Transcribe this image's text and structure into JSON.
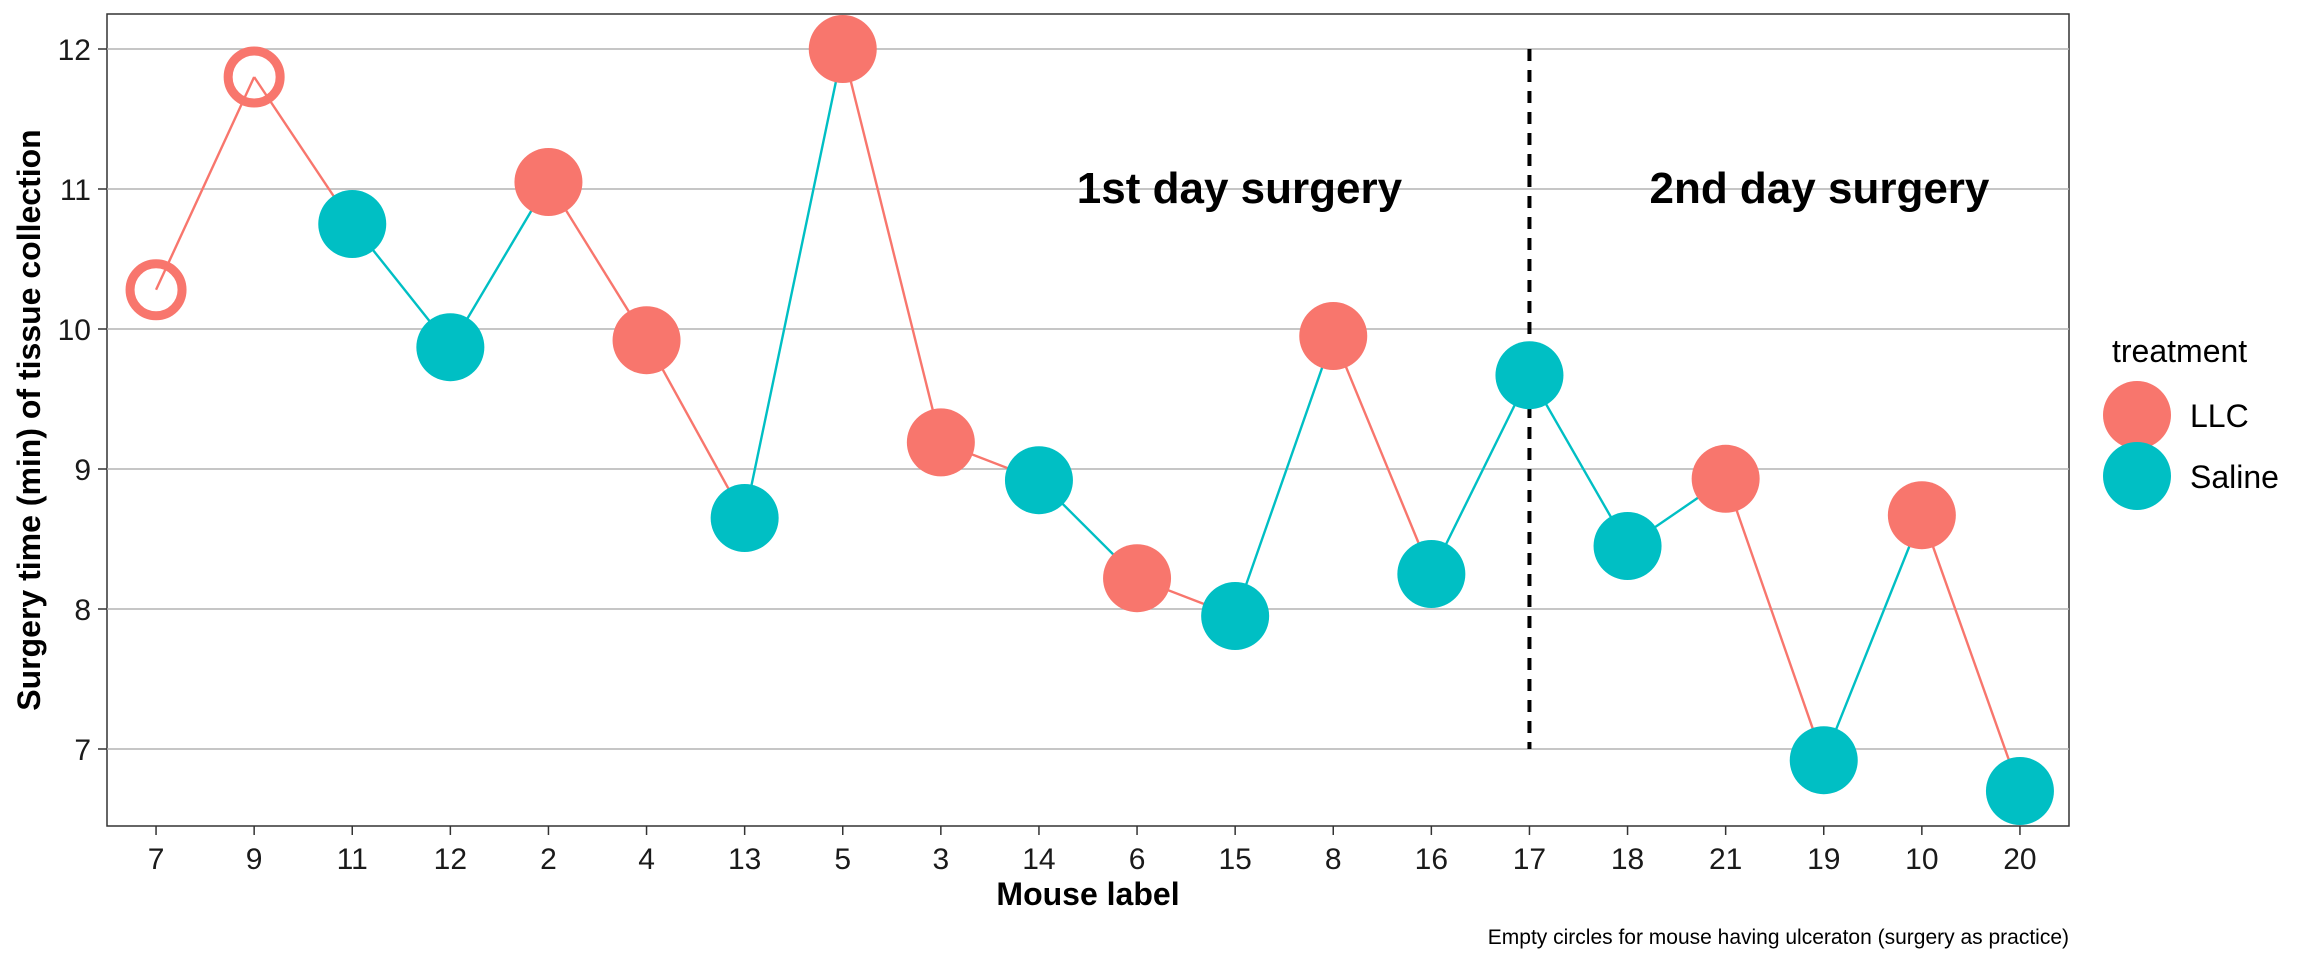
{
  "chart_data": {
    "type": "scatter",
    "title": "",
    "xlabel": "Mouse label",
    "ylabel": "Surgery time (min) of tissue collection",
    "categories": [
      "7",
      "9",
      "11",
      "12",
      "2",
      "4",
      "13",
      "5",
      "3",
      "14",
      "6",
      "15",
      "8",
      "16",
      "17",
      "18",
      "21",
      "19",
      "10",
      "20"
    ],
    "ylim": [
      6.45,
      12.25
    ],
    "yticks": [
      7,
      8,
      9,
      10,
      11,
      12
    ],
    "grid": true,
    "legend": {
      "title": "treatment",
      "placement": "right",
      "entries": [
        "LLC",
        "Saline"
      ]
    },
    "colors": {
      "LLC": "#F8766D",
      "Saline": "#00BFC4"
    },
    "points": [
      {
        "x": "7",
        "y": 10.28,
        "treatment": "LLC",
        "empty": true
      },
      {
        "x": "9",
        "y": 11.8,
        "treatment": "LLC",
        "empty": true
      },
      {
        "x": "11",
        "y": 10.75,
        "treatment": "Saline",
        "empty": false
      },
      {
        "x": "12",
        "y": 9.87,
        "treatment": "Saline",
        "empty": false
      },
      {
        "x": "2",
        "y": 11.05,
        "treatment": "LLC",
        "empty": false
      },
      {
        "x": "4",
        "y": 9.92,
        "treatment": "LLC",
        "empty": false
      },
      {
        "x": "13",
        "y": 8.65,
        "treatment": "Saline",
        "empty": false
      },
      {
        "x": "5",
        "y": 12.0,
        "treatment": "LLC",
        "empty": false
      },
      {
        "x": "3",
        "y": 9.19,
        "treatment": "LLC",
        "empty": false
      },
      {
        "x": "14",
        "y": 8.92,
        "treatment": "Saline",
        "empty": false
      },
      {
        "x": "6",
        "y": 8.22,
        "treatment": "LLC",
        "empty": false
      },
      {
        "x": "15",
        "y": 7.95,
        "treatment": "Saline",
        "empty": false
      },
      {
        "x": "8",
        "y": 9.95,
        "treatment": "LLC",
        "empty": false
      },
      {
        "x": "16",
        "y": 8.25,
        "treatment": "Saline",
        "empty": false
      },
      {
        "x": "17",
        "y": 9.67,
        "treatment": "Saline",
        "empty": false
      },
      {
        "x": "18",
        "y": 8.45,
        "treatment": "Saline",
        "empty": false
      },
      {
        "x": "21",
        "y": 8.93,
        "treatment": "LLC",
        "empty": false
      },
      {
        "x": "19",
        "y": 6.92,
        "treatment": "Saline",
        "empty": false
      },
      {
        "x": "10",
        "y": 8.67,
        "treatment": "LLC",
        "empty": false
      },
      {
        "x": "20",
        "y": 6.7,
        "treatment": "Saline",
        "empty": false
      }
    ],
    "divider": {
      "after_category": "17",
      "y_from": 7,
      "y_to": 12
    },
    "annotations": [
      {
        "text": "1st day surgery",
        "region": "before-divider"
      },
      {
        "text": "2nd day surgery",
        "region": "after-divider"
      }
    ],
    "caption": "Empty circles for mouse having ulceraton (surgery as practice)"
  }
}
